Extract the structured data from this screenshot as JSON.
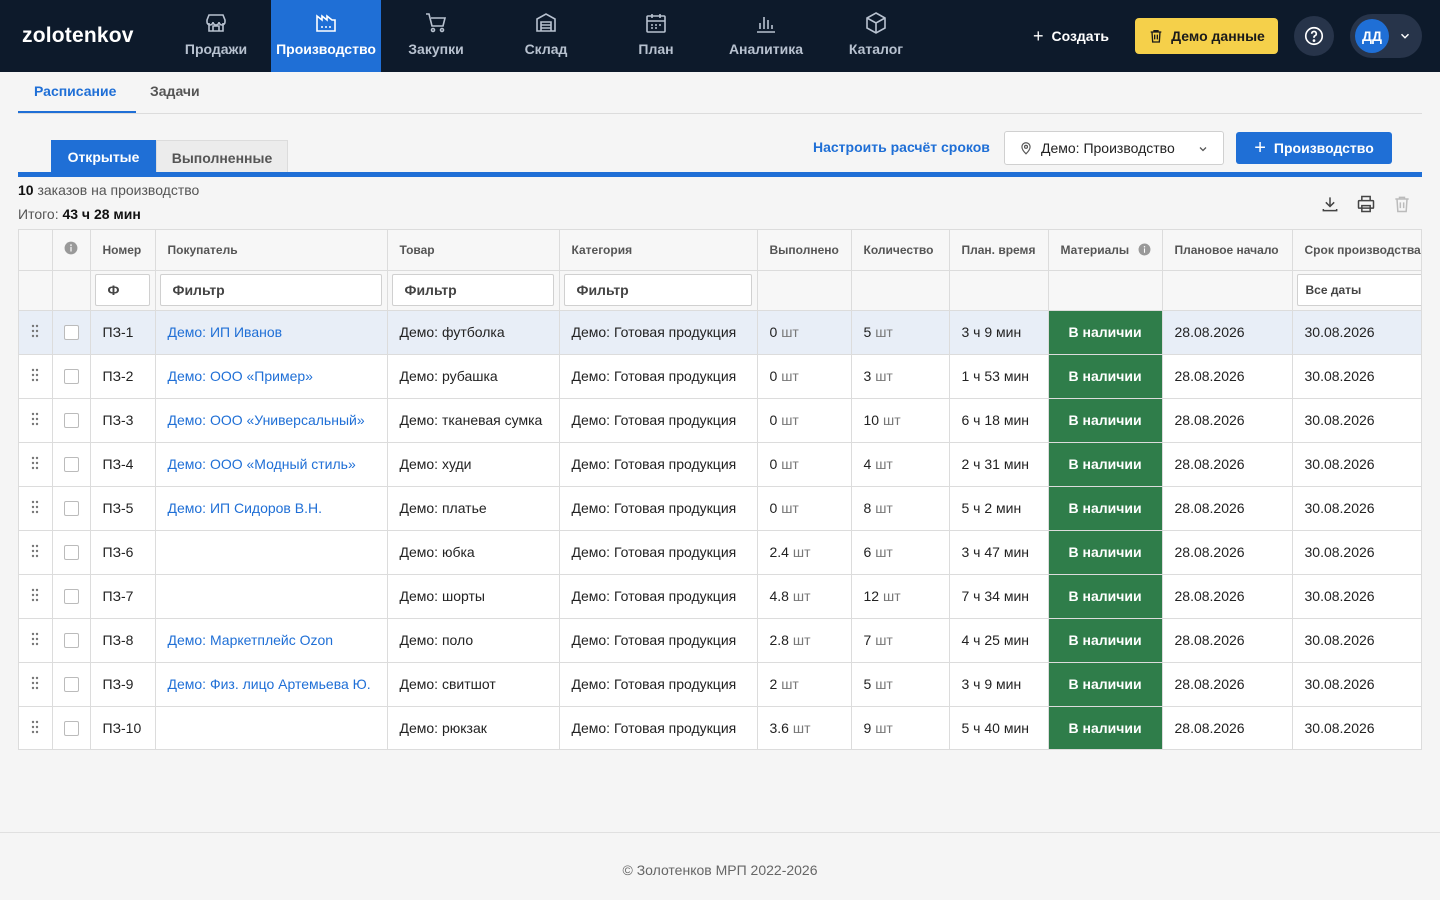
{
  "nav": {
    "logo": "zolotenkov",
    "items": [
      {
        "label": "Продажи",
        "icon": "store-icon"
      },
      {
        "label": "Производство",
        "icon": "factory-icon"
      },
      {
        "label": "Закупки",
        "icon": "cart-icon"
      },
      {
        "label": "Склад",
        "icon": "warehouse-icon"
      },
      {
        "label": "План",
        "icon": "calendar-icon"
      },
      {
        "label": "Аналитика",
        "icon": "chart-icon"
      },
      {
        "label": "Каталог",
        "icon": "box-icon"
      }
    ],
    "active": "Производство",
    "create_label": "Создать",
    "demo_label": "Демо данные",
    "user_initials": "ДД"
  },
  "subtabs": [
    "Расписание",
    "Задачи"
  ],
  "toolbar": {
    "status_tabs": [
      "Открытые",
      "Выполненные"
    ],
    "config_link": "Настроить расчёт сроков",
    "location": "Демо: Производство",
    "production_button": "Производство"
  },
  "summary": {
    "count": "10",
    "count_text": " заказов на производство",
    "total_label": "Итого: ",
    "total_value": "43 ч 28 мин"
  },
  "table": {
    "columns": [
      "Номер",
      "Покупатель",
      "Товар",
      "Категория",
      "Выполнено",
      "Количество",
      "План. время",
      "Материалы",
      "Плановое начало",
      "Срок производства"
    ],
    "filter_placeholders": {
      "number": "Ф",
      "buyer": "Фильтр",
      "product": "Фильтр",
      "category": "Фильтр",
      "deadline": "Все даты"
    },
    "rows": [
      {
        "num": "ПЗ-1",
        "buyer": "Демо: ИП Иванов",
        "product": "Демо: футболка",
        "category": "Демо: Готовая продукция",
        "done": "0",
        "qty": "5",
        "time": "3 ч 9 мин",
        "materials": "В наличии",
        "start": "28.08.2026",
        "deadline": "30.08.2026"
      },
      {
        "num": "ПЗ-2",
        "buyer": "Демо: ООО «Пример»",
        "product": "Демо: рубашка",
        "category": "Демо: Готовая продукция",
        "done": "0",
        "qty": "3",
        "time": "1 ч 53 мин",
        "materials": "В наличии",
        "start": "28.08.2026",
        "deadline": "30.08.2026"
      },
      {
        "num": "ПЗ-3",
        "buyer": "Демо: ООО «Универсальный»",
        "product": "Демо: тканевая сумка",
        "category": "Демо: Готовая продукция",
        "done": "0",
        "qty": "10",
        "time": "6 ч 18 мин",
        "materials": "В наличии",
        "start": "28.08.2026",
        "deadline": "30.08.2026"
      },
      {
        "num": "ПЗ-4",
        "buyer": "Демо: ООО «Модный стиль»",
        "product": "Демо: худи",
        "category": "Демо: Готовая продукция",
        "done": "0",
        "qty": "4",
        "time": "2 ч 31 мин",
        "materials": "В наличии",
        "start": "28.08.2026",
        "deadline": "30.08.2026"
      },
      {
        "num": "ПЗ-5",
        "buyer": "Демо: ИП Сидоров В.Н.",
        "product": "Демо: платье",
        "category": "Демо: Готовая продукция",
        "done": "0",
        "qty": "8",
        "time": "5 ч 2 мин",
        "materials": "В наличии",
        "start": "28.08.2026",
        "deadline": "30.08.2026"
      },
      {
        "num": "ПЗ-6",
        "buyer": "",
        "product": "Демо: юбка",
        "category": "Демо: Готовая продукция",
        "done": "2.4",
        "qty": "6",
        "time": "3 ч 47 мин",
        "materials": "В наличии",
        "start": "28.08.2026",
        "deadline": "30.08.2026"
      },
      {
        "num": "ПЗ-7",
        "buyer": "",
        "product": "Демо: шорты",
        "category": "Демо: Готовая продукция",
        "done": "4.8",
        "qty": "12",
        "time": "7 ч 34 мин",
        "materials": "В наличии",
        "start": "28.08.2026",
        "deadline": "30.08.2026"
      },
      {
        "num": "ПЗ-8",
        "buyer": "Демо: Маркетплейс Ozon",
        "product": "Демо: поло",
        "category": "Демо: Готовая продукция",
        "done": "2.8",
        "qty": "7",
        "time": "4 ч 25 мин",
        "materials": "В наличии",
        "start": "28.08.2026",
        "deadline": "30.08.2026"
      },
      {
        "num": "ПЗ-9",
        "buyer": "Демо: Физ. лицо Артемьева Ю.",
        "product": "Демо: свитшот",
        "category": "Демо: Готовая продукция",
        "done": "2",
        "qty": "5",
        "time": "3 ч 9 мин",
        "materials": "В наличии",
        "start": "28.08.2026",
        "deadline": "30.08.2026"
      },
      {
        "num": "ПЗ-10",
        "buyer": "",
        "product": "Демо: рюкзак",
        "category": "Демо: Готовая продукция",
        "done": "3.6",
        "qty": "9",
        "time": "5 ч 40 мин",
        "materials": "В наличии",
        "start": "28.08.2026",
        "deadline": "30.08.2026"
      }
    ],
    "unit": "шт"
  },
  "footer": "© Золотенков МРП 2022-2026",
  "colors": {
    "nav_bg": "#0d1a2b",
    "accent": "#1f6fd6",
    "demo_yellow": "#f5d04a",
    "in_stock_green": "#2f7d4a"
  }
}
